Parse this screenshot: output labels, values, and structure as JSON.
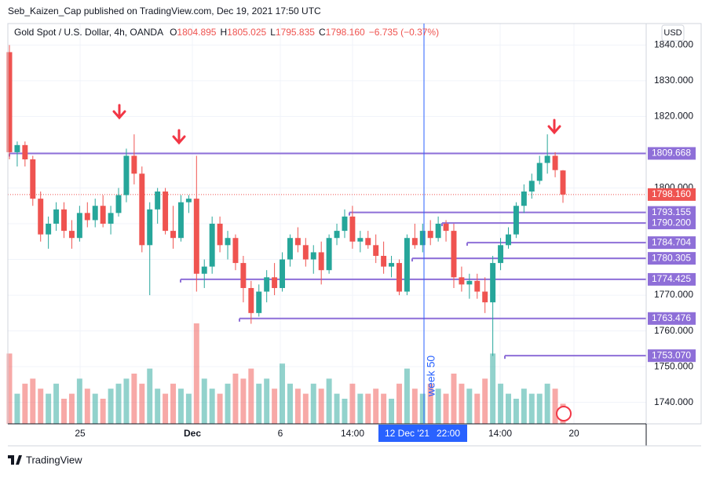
{
  "header": "Seb_Kaizen_Cap published on TradingView.com, Dec 19, 2021 17:50 UTC",
  "footer": "TradingView",
  "currency": "USD",
  "chart_data": {
    "type": "candlestick",
    "title": "Gold Spot / U.S. Dollar, 4h, OANDA",
    "legend": [
      {
        "label": "O",
        "value": "1804.895"
      },
      {
        "label": "H",
        "value": "1805.025"
      },
      {
        "label": "L",
        "value": "1795.835"
      },
      {
        "label": "C",
        "value": "1798.160"
      }
    ],
    "change": "−6.735 (−0.37%)",
    "up_color": "#26a69a",
    "down_color": "#ef5350",
    "level_color": "#8e6fd8",
    "candles": [
      [
        1838,
        1840,
        1808,
        1810
      ],
      [
        1810,
        1813,
        1806,
        1812
      ],
      [
        1812,
        1813,
        1806,
        1808
      ],
      [
        1808,
        1809,
        1795,
        1797
      ],
      [
        1797,
        1799,
        1785,
        1787
      ],
      [
        1787,
        1792,
        1783,
        1790
      ],
      [
        1790,
        1796,
        1788,
        1794
      ],
      [
        1794,
        1796,
        1786,
        1788
      ],
      [
        1788,
        1791,
        1783,
        1786
      ],
      [
        1786,
        1795,
        1785,
        1793
      ],
      [
        1793,
        1796,
        1789,
        1791
      ],
      [
        1791,
        1797,
        1789,
        1795
      ],
      [
        1795,
        1798,
        1789,
        1790
      ],
      [
        1790,
        1795,
        1787,
        1793
      ],
      [
        1793,
        1800,
        1792,
        1798
      ],
      [
        1798,
        1811,
        1796,
        1809
      ],
      [
        1809,
        1815,
        1801,
        1804
      ],
      [
        1804,
        1806,
        1782,
        1784
      ],
      [
        1784,
        1796,
        1770,
        1794
      ],
      [
        1794,
        1800,
        1790,
        1799
      ],
      [
        1799,
        1800,
        1787,
        1788
      ],
      [
        1788,
        1795,
        1783,
        1786
      ],
      [
        1786,
        1798,
        1785,
        1796
      ],
      [
        1796,
        1798,
        1793,
        1797
      ],
      [
        1797,
        1809,
        1771,
        1776
      ],
      [
        1776,
        1780,
        1772,
        1778
      ],
      [
        1778,
        1792,
        1776,
        1790
      ],
      [
        1790,
        1792,
        1782,
        1784
      ],
      [
        1784,
        1788,
        1780,
        1786
      ],
      [
        1786,
        1787,
        1777,
        1779
      ],
      [
        1779,
        1781,
        1768,
        1772
      ],
      [
        1772,
        1774,
        1762,
        1765
      ],
      [
        1765,
        1773,
        1764,
        1771
      ],
      [
        1771,
        1777,
        1768,
        1775
      ],
      [
        1775,
        1779,
        1770,
        1772
      ],
      [
        1772,
        1782,
        1771,
        1780
      ],
      [
        1780,
        1787,
        1778,
        1786
      ],
      [
        1786,
        1789,
        1782,
        1784
      ],
      [
        1784,
        1786,
        1778,
        1780
      ],
      [
        1780,
        1784,
        1776,
        1782
      ],
      [
        1782,
        1785,
        1773,
        1777
      ],
      [
        1777,
        1787,
        1776,
        1786
      ],
      [
        1786,
        1790,
        1784,
        1788
      ],
      [
        1788,
        1794,
        1786,
        1792
      ],
      [
        1792,
        1795,
        1783,
        1785
      ],
      [
        1785,
        1788,
        1782,
        1786
      ],
      [
        1786,
        1788,
        1783,
        1784
      ],
      [
        1784,
        1787,
        1779,
        1781
      ],
      [
        1781,
        1785,
        1776,
        1778
      ],
      [
        1778,
        1781,
        1775,
        1779
      ],
      [
        1779,
        1780,
        1770,
        1771
      ],
      [
        1771,
        1787,
        1770,
        1786
      ],
      [
        1786,
        1790,
        1783,
        1784
      ],
      [
        1784,
        1790,
        1782,
        1788
      ],
      [
        1788,
        1791,
        1784,
        1786
      ],
      [
        1786,
        1792,
        1785,
        1790
      ],
      [
        1790,
        1791,
        1785,
        1788
      ],
      [
        1788,
        1790,
        1772,
        1775
      ],
      [
        1775,
        1778,
        1771,
        1773
      ],
      [
        1773,
        1776,
        1769,
        1774
      ],
      [
        1774,
        1776,
        1769,
        1771
      ],
      [
        1771,
        1775,
        1765,
        1768
      ],
      [
        1768,
        1781,
        1753,
        1779
      ],
      [
        1779,
        1786,
        1777,
        1784
      ],
      [
        1784,
        1789,
        1783,
        1787
      ],
      [
        1787,
        1796,
        1786,
        1795
      ],
      [
        1795,
        1801,
        1793,
        1799
      ],
      [
        1799,
        1804,
        1797,
        1802
      ],
      [
        1802,
        1809,
        1801,
        1807
      ],
      [
        1807,
        1815,
        1804,
        1809
      ],
      [
        1809,
        1810,
        1803,
        1805
      ],
      [
        1804.895,
        1805.025,
        1795.835,
        1798.16
      ]
    ],
    "volume": [
      70,
      30,
      40,
      45,
      35,
      30,
      40,
      25,
      30,
      45,
      35,
      30,
      25,
      35,
      40,
      45,
      50,
      40,
      55,
      35,
      30,
      40,
      35,
      30,
      100,
      45,
      35,
      30,
      40,
      50,
      45,
      55,
      40,
      45,
      35,
      60,
      40,
      35,
      30,
      40,
      35,
      45,
      30,
      25,
      40,
      30,
      30,
      35,
      30,
      25,
      40,
      55,
      35,
      30,
      40,
      35,
      30,
      50,
      40,
      35,
      30,
      45,
      70,
      40,
      30,
      25,
      35,
      30,
      30,
      40,
      35,
      20
    ],
    "ylim": [
      1734,
      1846
    ],
    "yticks": [
      {
        "value": 1740,
        "label": "1740.000"
      },
      {
        "value": 1750,
        "label": "1750.000"
      },
      {
        "value": 1760,
        "label": "1760.000"
      },
      {
        "value": 1770,
        "label": "1770.000"
      },
      {
        "value": 1780,
        "label": "1780.000"
      },
      {
        "value": 1790,
        "label": "1790.000"
      },
      {
        "value": 1800,
        "label": "1800.000"
      },
      {
        "value": 1810,
        "label": "1810.000"
      },
      {
        "value": 1820,
        "label": "1820.000"
      },
      {
        "value": 1830,
        "label": "1830.000"
      },
      {
        "value": 1840,
        "label": "1840.000"
      }
    ],
    "xtick_labels": [
      "25",
      "Dec",
      "6",
      "14:00",
      "14:00",
      "20"
    ],
    "crosshair_date": "12 Dec '21",
    "crosshair_time": "22:00",
    "week_label": "week 50",
    "last_price": {
      "value": 1798.16,
      "label": "1798.160"
    },
    "levels": [
      {
        "value": 1809.668,
        "label": "1809.668"
      },
      {
        "value": 1793.155,
        "label": "1793.155"
      },
      {
        "value": 1790.2,
        "label": "1790.200"
      },
      {
        "value": 1784.704,
        "label": "1784.704"
      },
      {
        "value": 1780.305,
        "label": "1780.305"
      },
      {
        "value": 1774.425,
        "label": "1774.425"
      },
      {
        "value": 1763.476,
        "label": "1763.476"
      },
      {
        "value": 1753.07,
        "label": "1753.070"
      }
    ]
  }
}
